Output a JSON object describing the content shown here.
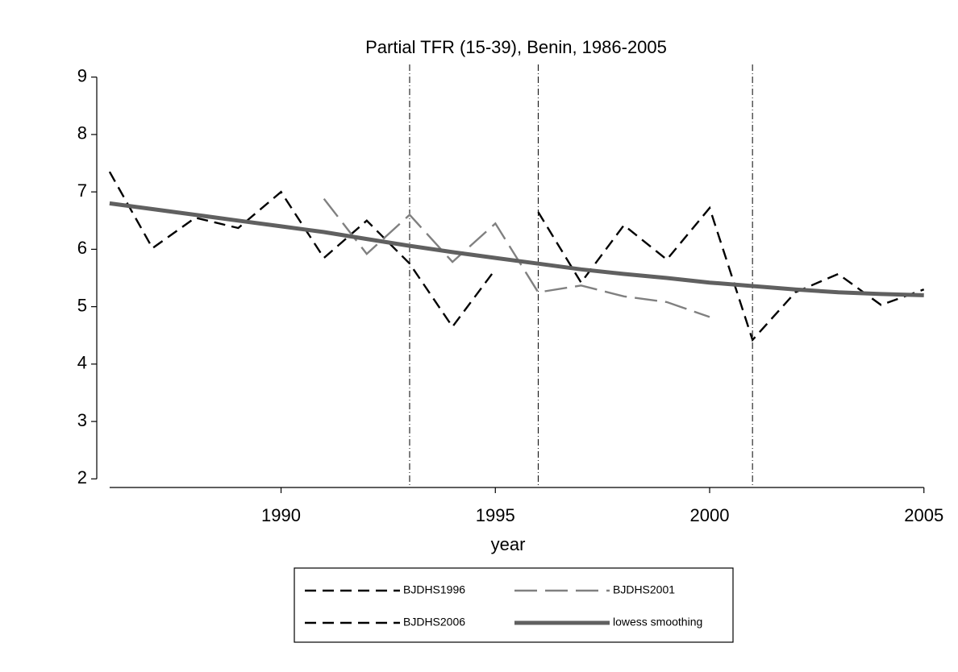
{
  "chart_data": {
    "type": "line",
    "title": "Partial TFR (15-39), Benin, 1986-2005",
    "x_label": "year",
    "x": [
      1986,
      1987,
      1988,
      1989,
      1990,
      1991,
      1992,
      1993,
      1994,
      1995,
      1996,
      1997,
      1998,
      1999,
      2000,
      2001,
      2002,
      2003,
      2004,
      2005
    ],
    "series": [
      {
        "name": "BJDHS1996",
        "color": "#000000",
        "values": [
          7.35,
          6.02,
          6.55,
          6.37,
          7.0,
          5.85,
          6.5,
          5.75,
          4.65,
          5.65,
          null,
          null,
          null,
          null,
          null,
          null,
          null,
          null,
          null,
          null
        ]
      },
      {
        "name": "BJDHS2001",
        "color": "#808080",
        "values": [
          null,
          null,
          null,
          null,
          null,
          6.88,
          5.92,
          6.6,
          5.78,
          6.45,
          5.25,
          5.37,
          5.18,
          5.08,
          4.82,
          null,
          null,
          null,
          null,
          null
        ]
      },
      {
        "name": "BJDHS2006",
        "color": "#000000",
        "values": [
          null,
          null,
          null,
          null,
          null,
          null,
          null,
          null,
          null,
          null,
          6.65,
          5.42,
          6.42,
          5.82,
          6.72,
          4.42,
          5.25,
          5.57,
          5.03,
          5.3
        ]
      },
      {
        "name": "lowess smoothing",
        "color": "#606060",
        "values": [
          6.8,
          6.7,
          6.6,
          6.5,
          6.4,
          6.3,
          6.18,
          6.06,
          5.95,
          5.85,
          5.75,
          5.65,
          5.57,
          5.5,
          5.42,
          5.36,
          5.3,
          5.25,
          5.22,
          5.2
        ]
      }
    ],
    "xlim": [
      1985.7,
      2005.4
    ],
    "xticks": [
      1990,
      1995,
      2000,
      2005
    ],
    "ylim": [
      1.85,
      9.15
    ],
    "yticks": [
      2,
      3,
      4,
      5,
      6,
      7,
      8,
      9
    ],
    "xlines": [
      1993,
      1996,
      2001
    ],
    "grid": false
  }
}
